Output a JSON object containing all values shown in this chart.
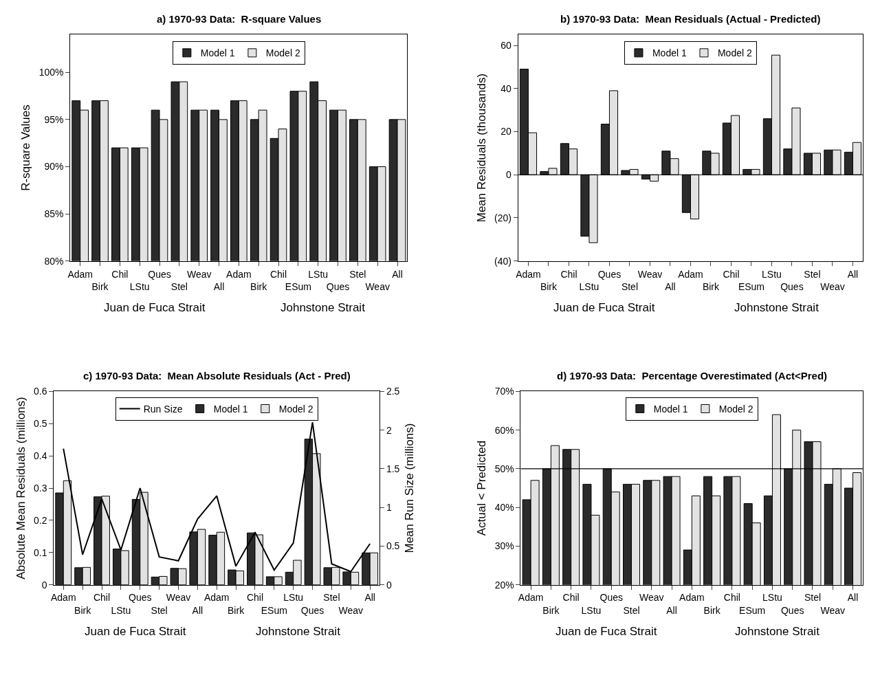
{
  "chart_data": [
    {
      "type": "bar",
      "title": "a) 1970-93 Data:  R-square Values",
      "ylabel": "R-square Values",
      "categories": [
        "Adam",
        "Birk",
        "Chil",
        "LStu",
        "Ques",
        "Stel",
        "Weav",
        "All",
        "Adam",
        "Birk",
        "Chil",
        "ESum",
        "LStu",
        "Ques",
        "Stel",
        "Weav",
        "All"
      ],
      "series": [
        {
          "name": "Model 1",
          "color": "#2b2b2b",
          "values": [
            97,
            97,
            92,
            92,
            96,
            99,
            96,
            96,
            97,
            95,
            93,
            98,
            99,
            96,
            95,
            90,
            95
          ]
        },
        {
          "name": "Model 2",
          "color": "#e2e2e2",
          "values": [
            96,
            97,
            92,
            92,
            95,
            99,
            96,
            95,
            97,
            96,
            94,
            98,
            97,
            96,
            95,
            90,
            95
          ]
        }
      ],
      "ylim": [
        80,
        104
      ],
      "yticks": [
        {
          "value": 80,
          "label": "80%"
        },
        {
          "value": 85,
          "label": "85%"
        },
        {
          "value": 90,
          "label": "90%"
        },
        {
          "value": 95,
          "label": "95%"
        },
        {
          "value": 100,
          "label": "100%"
        }
      ],
      "legend": "top",
      "annotations": [
        "Juan de Fuca Strait",
        "Johnstone Strait"
      ]
    },
    {
      "type": "bar",
      "title": "b) 1970-93 Data:  Mean Residuals (Actual - Predicted)",
      "ylabel": "Mean Residuals (thousands)",
      "categories": [
        "Adam",
        "Birk",
        "Chil",
        "LStu",
        "Ques",
        "Stel",
        "Weav",
        "All",
        "Adam",
        "Birk",
        "Chil",
        "ESum",
        "LStu",
        "Ques",
        "Stel",
        "Weav",
        "All"
      ],
      "series": [
        {
          "name": "Model 1",
          "color": "#2b2b2b",
          "values": [
            49,
            1.5,
            14.5,
            -28.5,
            23.5,
            2,
            -2,
            11,
            -17.5,
            11,
            24,
            2.5,
            26,
            12,
            10,
            11.5,
            10.5
          ]
        },
        {
          "name": "Model 2",
          "color": "#e2e2e2",
          "values": [
            19.5,
            3,
            12,
            -31.5,
            39,
            2.5,
            -3,
            7.5,
            -20.5,
            10,
            27.5,
            2.5,
            55.5,
            31,
            10,
            11.5,
            15
          ]
        }
      ],
      "ylim": [
        -40,
        65
      ],
      "yticks": [
        {
          "value": -40,
          "label": "(40)"
        },
        {
          "value": -20,
          "label": "(20)"
        },
        0,
        20,
        40,
        60
      ],
      "ref_lines": [
        {
          "axis": "y",
          "value": 0,
          "color": "#000000"
        }
      ],
      "legend": "top",
      "annotations": [
        "Juan de Fuca Strait",
        "Johnstone Strait"
      ]
    },
    {
      "type": "bar",
      "title": "c) 1970-93 Data:  Mean Absolute Residuals (Act - Pred)",
      "ylabel": "Absolute Mean Residuals (millions)",
      "y2label": "Mean Run Size (millions)",
      "categories": [
        "Adam",
        "Birk",
        "Chil",
        "LStu",
        "Ques",
        "Stel",
        "Weav",
        "All",
        "Adam",
        "Birk",
        "Chil",
        "ESum",
        "LStu",
        "Ques",
        "Stel",
        "Weav",
        "All"
      ],
      "series": [
        {
          "name": "Run Size",
          "type": "line",
          "axis": "y2",
          "color": "#000000",
          "values": [
            1.76,
            0.39,
            1.11,
            0.45,
            1.25,
            0.36,
            0.31,
            0.85,
            1.15,
            0.24,
            0.68,
            0.19,
            0.54,
            2.1,
            0.27,
            0.17,
            0.53
          ]
        },
        {
          "name": "Model 1",
          "color": "#2b2b2b",
          "values": [
            0.285,
            0.053,
            0.273,
            0.111,
            0.265,
            0.024,
            0.051,
            0.164,
            0.154,
            0.046,
            0.161,
            0.025,
            0.039,
            0.452,
            0.053,
            0.04,
            0.099
          ]
        },
        {
          "name": "Model 2",
          "color": "#e2e2e2",
          "values": [
            0.323,
            0.054,
            0.275,
            0.106,
            0.287,
            0.026,
            0.05,
            0.172,
            0.163,
            0.043,
            0.155,
            0.025,
            0.076,
            0.407,
            0.054,
            0.039,
            0.099
          ]
        }
      ],
      "ylim": [
        0,
        0.6
      ],
      "yticks": [
        {
          "value": 0,
          "label": "0"
        },
        0.1,
        0.2,
        0.3,
        0.4,
        0.5,
        0.6
      ],
      "y2lim": [
        0,
        2.5
      ],
      "y2ticks": [
        0,
        0.5,
        1,
        1.5,
        2,
        2.5
      ],
      "legend": "top",
      "annotations": [
        "Juan de Fuca Strait",
        "Johnstone Strait"
      ]
    },
    {
      "type": "bar",
      "title": "d) 1970-93 Data:  Percentage Overestimated (Act<Pred)",
      "ylabel": "Actual < Predicted",
      "categories": [
        "Adam",
        "Birk",
        "Chil",
        "LStu",
        "Ques",
        "Stel",
        "Weav",
        "All",
        "Adam",
        "Birk",
        "Chil",
        "ESum",
        "LStu",
        "Ques",
        "Stel",
        "Weav",
        "All"
      ],
      "series": [
        {
          "name": "Model 1",
          "color": "#2b2b2b",
          "values": [
            42,
            50,
            55,
            46,
            50,
            46,
            47,
            48,
            29,
            48,
            48,
            41,
            43,
            50,
            57,
            46,
            45
          ]
        },
        {
          "name": "Model 2",
          "color": "#e2e2e2",
          "values": [
            47,
            56,
            55,
            38,
            44,
            46,
            47,
            48,
            43,
            43,
            48,
            36,
            64,
            60,
            57,
            50,
            49
          ]
        }
      ],
      "ylim": [
        20,
        70
      ],
      "yticks": [
        {
          "value": 20,
          "label": "20%"
        },
        {
          "value": 30,
          "label": "30%"
        },
        {
          "value": 40,
          "label": "40%"
        },
        {
          "value": 50,
          "label": "50%"
        },
        {
          "value": 60,
          "label": "60%"
        },
        {
          "value": 70,
          "label": "70%"
        }
      ],
      "ref_lines": [
        {
          "axis": "y",
          "value": 50,
          "color": "#000000"
        }
      ],
      "legend": "top",
      "annotations": [
        "Juan de Fuca Strait",
        "Johnstone Strait"
      ]
    }
  ]
}
